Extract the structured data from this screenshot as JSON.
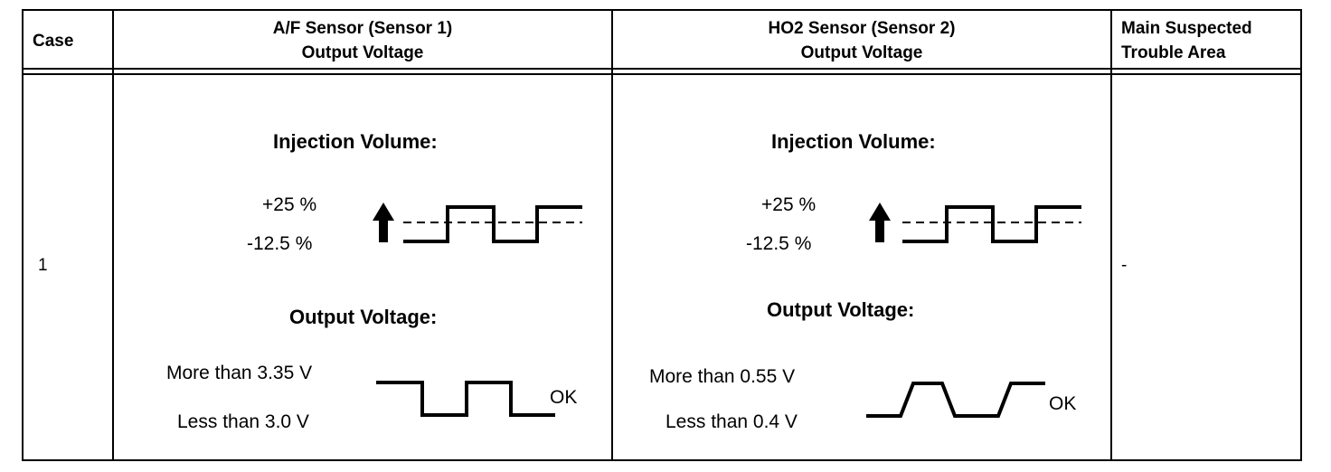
{
  "headers": {
    "case": "Case",
    "af_line1": "A/F Sensor (Sensor 1)",
    "af_line2": "Output Voltage",
    "ho2_line1": "HO2 Sensor (Sensor 2)",
    "ho2_line2": "Output Voltage",
    "area_line1": "Main Suspected",
    "area_line2": "Trouble Area"
  },
  "row": {
    "case": "1",
    "af": {
      "injection_title": "Injection Volume:",
      "inj_high": "+25 %",
      "inj_low": "-12.5 %",
      "output_title": "Output Voltage:",
      "high_label": "More than 3.35 V",
      "low_label": "Less than 3.0 V",
      "result": "OK"
    },
    "ho2": {
      "injection_title": "Injection Volume:",
      "inj_high": "+25 %",
      "inj_low": "-12.5 %",
      "output_title": "Output Voltage:",
      "high_label": "More than 0.55 V",
      "low_label": "Less than 0.4 V",
      "result": "OK"
    },
    "area": "-"
  }
}
